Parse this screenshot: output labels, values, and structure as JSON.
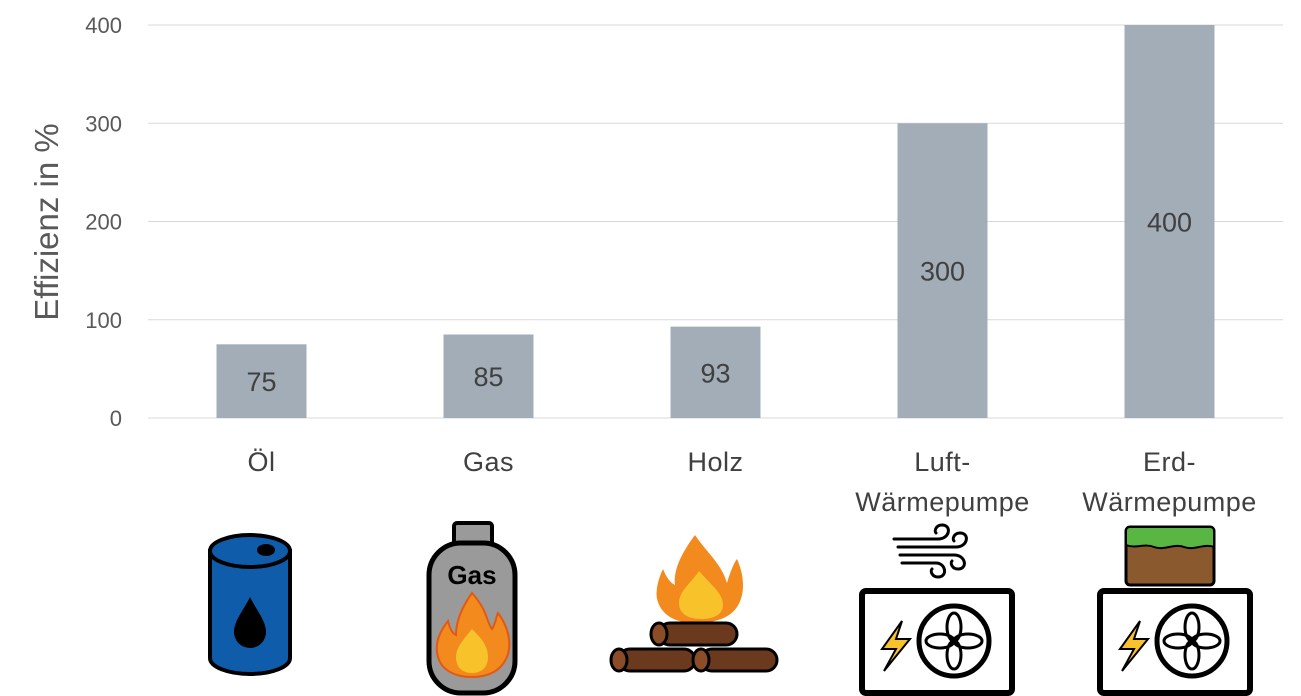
{
  "chart_data": {
    "type": "bar",
    "categories": [
      "Öl",
      "Gas",
      "Holz",
      "Luft-\nWärmepumpe",
      "Erd-\nWärmepumpe"
    ],
    "values": [
      75,
      85,
      93,
      300,
      400
    ],
    "data_labels": [
      "75",
      "85",
      "93",
      "300",
      "400"
    ],
    "ylabel": "Effizienz in %",
    "ylim": [
      0,
      400
    ],
    "yticks": [
      0,
      100,
      200,
      300,
      400
    ],
    "grid": true,
    "bar_color": "#a2adb8",
    "icons": [
      "oil-barrel-icon",
      "gas-cylinder-icon",
      "firewood-icon",
      "air-heat-pump-icon",
      "ground-heat-pump-icon"
    ],
    "icon_texts": {
      "gas_cylinder": "Gas"
    }
  }
}
